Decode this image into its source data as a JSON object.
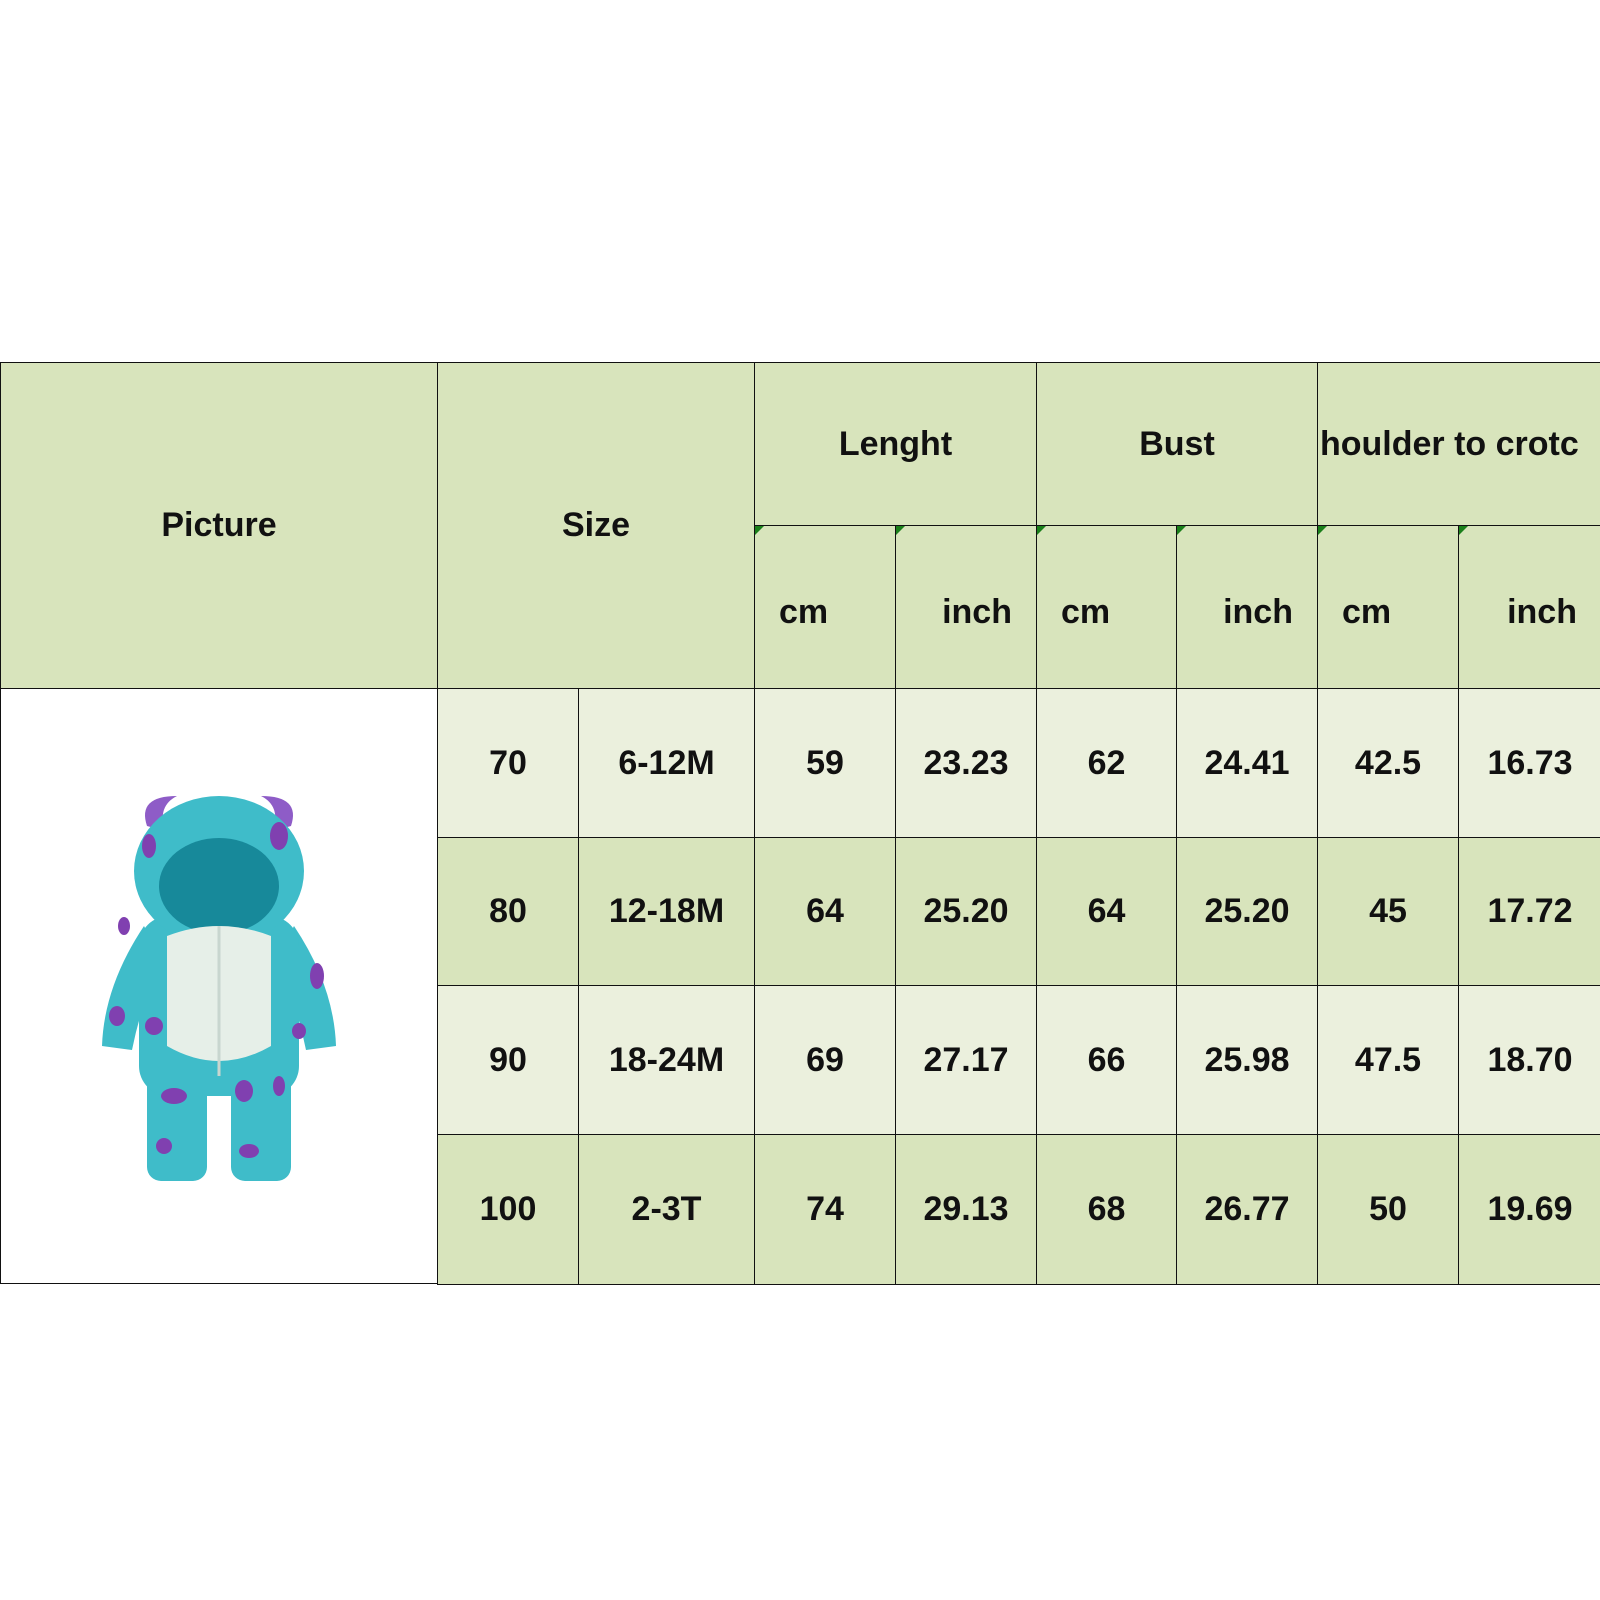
{
  "colors": {
    "header_bg": "#d8e4bc",
    "row_light": "#ebf0dd",
    "row_dark": "#d8e4bc",
    "border": "#111111"
  },
  "header": {
    "picture": "Picture",
    "size": "Size",
    "groups": [
      "Lenght",
      "Bust",
      "houlder to crotc"
    ],
    "units": [
      "cm",
      "inch",
      "cm",
      "inch",
      "cm",
      "inch"
    ]
  },
  "picture_icon": "monster-romper-image",
  "rows": [
    [
      "70",
      "6-12M",
      "59",
      "23.23",
      "62",
      "24.41",
      "42.5",
      "16.73"
    ],
    [
      "80",
      "12-18M",
      "64",
      "25.20",
      "64",
      "25.20",
      "45",
      "17.72"
    ],
    [
      "90",
      "18-24M",
      "69",
      "27.17",
      "66",
      "25.98",
      "47.5",
      "18.70"
    ],
    [
      "100",
      "2-3T",
      "74",
      "29.13",
      "68",
      "26.77",
      "50",
      "19.69"
    ]
  ]
}
